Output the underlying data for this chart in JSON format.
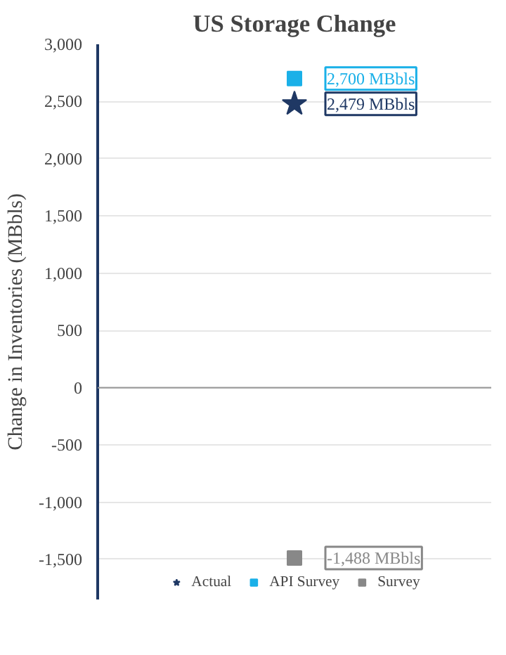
{
  "chart_data": {
    "type": "scatter",
    "title": "US Storage Change",
    "ylabel": "Change in Inventories (MBbls)",
    "categories": [
      null
    ],
    "series": [
      {
        "name": "Actual",
        "color": "#1f3864",
        "values": [
          2479
        ],
        "marker": "star",
        "value_labels": [
          "2,479 MBbls"
        ]
      },
      {
        "name": "API Survey",
        "color": "#1ab0e8",
        "values": [
          2700
        ],
        "marker": "square",
        "value_labels": [
          "2,700 MBbls"
        ]
      },
      {
        "name": "Survey",
        "color": "#888888",
        "values": [
          -1488
        ],
        "marker": "square",
        "value_labels": [
          "-1,488 MBbls"
        ]
      }
    ],
    "ylim": [
      -1850,
      3000
    ],
    "yticks": [
      {
        "value": -1500,
        "label": "-1,500"
      },
      {
        "value": -1000,
        "label": "-1,000"
      },
      -500,
      0,
      500,
      {
        "value": 1000,
        "label": "1,000"
      },
      {
        "value": 1500,
        "label": "1,500"
      },
      {
        "value": 2000,
        "label": "2,000"
      },
      {
        "value": 2500,
        "label": "2,500"
      },
      {
        "value": 3000,
        "label": "3,000"
      }
    ],
    "grid": "y",
    "legend": "bottom",
    "ref_lines": [
      {
        "axis": "y",
        "value": 0,
        "color": "#999999"
      }
    ]
  }
}
